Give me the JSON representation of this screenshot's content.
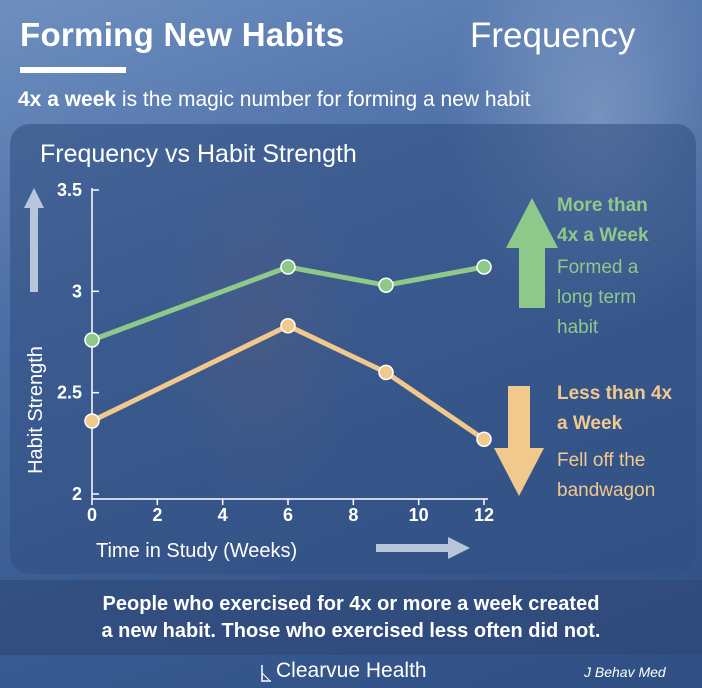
{
  "header": {
    "title": "Forming New Habits",
    "topic": "Frequency",
    "subtitle_bold": "4x a week",
    "subtitle_rest": " is the magic number for forming a new habit"
  },
  "legend": {
    "more_title_line1": "More than",
    "more_title_line2": "4x a Week",
    "more_desc_line1": "Formed a",
    "more_desc_line2": "long term",
    "more_desc_line3": "habit",
    "less_title_line1": "Less than 4x",
    "less_title_line2": "a Week",
    "less_desc_line1": "Fell off the",
    "less_desc_line2": "bandwagon"
  },
  "footer": {
    "line1": "People who exercised for 4x or more a week created",
    "line2": "a new habit. Those who exercised less often did not.",
    "brand": "Clearvue Health",
    "source": "J Behav Med"
  },
  "colors": {
    "more": "#8ec98a",
    "less": "#f2c98d",
    "axis": "#ffffff",
    "arrow": "#b8c6dc"
  },
  "chart_data": {
    "type": "line",
    "title": "Frequency vs Habit Strength",
    "xlabel": "Time in Study (Weeks)",
    "ylabel": "Habit Strength",
    "xlim": [
      0,
      12
    ],
    "ylim": [
      2,
      3.5
    ],
    "xticks": [
      0,
      2,
      4,
      6,
      8,
      10,
      12
    ],
    "yticks": [
      2,
      2.5,
      3,
      3.5
    ],
    "ytick_labels": [
      "2",
      "2.5",
      "3",
      "3.5"
    ],
    "series": [
      {
        "color": "#8ec98a",
        "x": [
          0,
          6,
          9,
          12
        ],
        "y": [
          2.76,
          3.12,
          3.03,
          3.12
        ]
      },
      {
        "color": "#f2c98d",
        "x": [
          0,
          6,
          9,
          12
        ],
        "y": [
          2.36,
          2.83,
          2.6,
          2.27
        ]
      }
    ]
  }
}
